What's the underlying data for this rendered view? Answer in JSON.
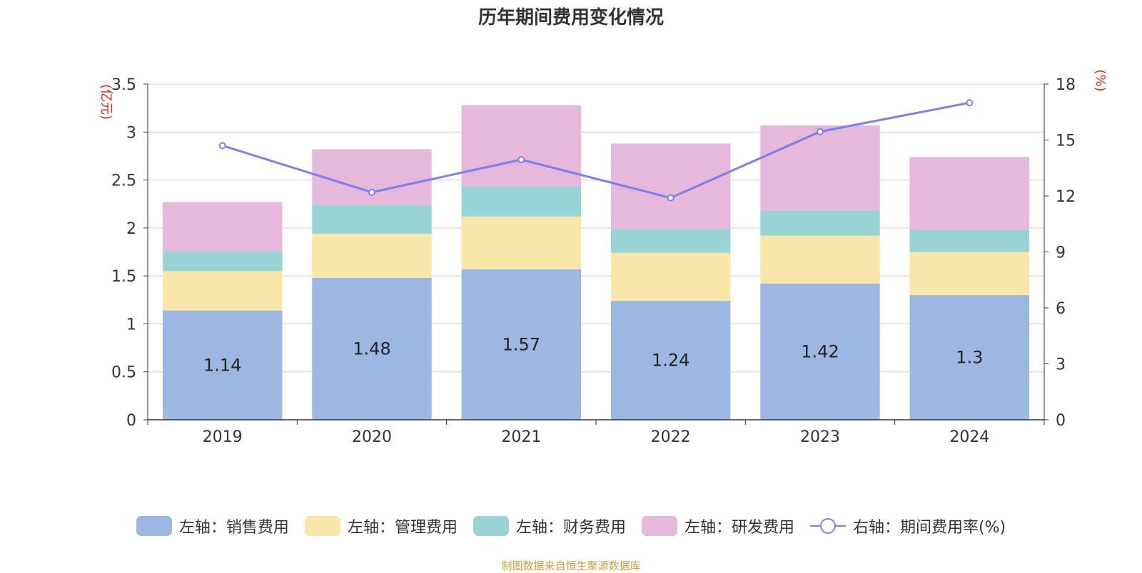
{
  "title": "历年期间费用变化情况",
  "source": "制图数据来自恒生聚源数据库",
  "chart_data": {
    "type": "bar",
    "stacked": true,
    "categories": [
      "2019",
      "2020",
      "2021",
      "2022",
      "2023",
      "2024"
    ],
    "y_left_unit": "(亿元)",
    "y_right_unit": "(%)",
    "y_left_range": [
      0,
      3.5
    ],
    "y_left_ticks": [
      "0",
      "0.5",
      "1",
      "1.5",
      "2",
      "2.5",
      "3",
      "3.5"
    ],
    "y_right_range": [
      0,
      18
    ],
    "y_right_ticks": [
      "0",
      "3",
      "6",
      "9",
      "12",
      "15",
      "18"
    ],
    "grid": true,
    "legend_position": "bottom",
    "series": [
      {
        "name": "左轴：销售费用",
        "color": "#9cb8e2",
        "axis": "left",
        "values": [
          1.14,
          1.48,
          1.57,
          1.24,
          1.42,
          1.3
        ],
        "labels": [
          "1.14",
          "1.48",
          "1.57",
          "1.24",
          "1.42",
          "1.3"
        ]
      },
      {
        "name": "左轴：管理费用",
        "color": "#f8e7a8",
        "axis": "left",
        "values": [
          0.41,
          0.46,
          0.55,
          0.5,
          0.5,
          0.45
        ]
      },
      {
        "name": "左轴：财务费用",
        "color": "#98d4d4",
        "axis": "left",
        "values": [
          0.21,
          0.3,
          0.31,
          0.25,
          0.26,
          0.23
        ]
      },
      {
        "name": "左轴：研发费用",
        "color": "#e6b8da",
        "axis": "left",
        "values": [
          0.51,
          0.58,
          0.85,
          0.89,
          0.89,
          0.76
        ]
      }
    ],
    "line_series": {
      "name": "右轴：期间费用率(%)",
      "color": "#7b7ff0",
      "axis": "right",
      "values": [
        14.7,
        12.2,
        13.95,
        11.9,
        15.45,
        17.0
      ]
    }
  }
}
